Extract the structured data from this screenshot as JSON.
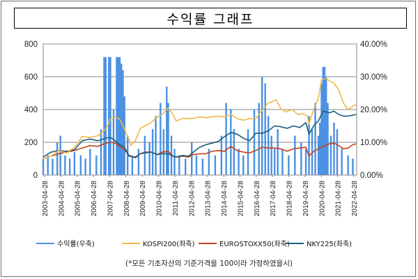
{
  "chart_data": {
    "type": "line",
    "title": "수익률 그래프",
    "footnote": "(*모든 기초자산의 기준가격을 100이라 가정하였을시)",
    "x_ticks": [
      "2003-04-28",
      "2004-04-28",
      "2005-04-28",
      "2006-04-28",
      "2007-04-28",
      "2008-04-28",
      "2009-04-28",
      "2010-04-28",
      "2011-04-28",
      "2012-04-28",
      "2013-04-28",
      "2014-04-28",
      "2015-04-28",
      "2016-04-28",
      "2017-04-28",
      "2018-04-28",
      "2019-04-28",
      "2020-04-28",
      "2021-04-28",
      "2022-04-28"
    ],
    "y_left": {
      "min": 0,
      "max": 800,
      "ticks": [
        "0",
        "200",
        "400",
        "600",
        "800"
      ]
    },
    "y_right": {
      "min": 0,
      "max": 40,
      "ticks": [
        "0.00%",
        "10.00%",
        "20.00%",
        "30.00%",
        "40.00%"
      ]
    },
    "grid": true,
    "legend_position": "bottom",
    "series": [
      {
        "name": "수익률(우축)",
        "axis": "right",
        "style": "spikes",
        "color": "#4a90e2",
        "x": [
          2003.3,
          2003.6,
          2003.9,
          2004.2,
          2004.4,
          2004.7,
          2005.0,
          2005.3,
          2005.7,
          2006.0,
          2006.3,
          2006.7,
          2007.0,
          2007.2,
          2007.3,
          2007.5,
          2007.6,
          2007.8,
          2008.0,
          2008.1,
          2008.2,
          2008.3,
          2008.4,
          2008.5,
          2008.7,
          2009.0,
          2009.4,
          2009.8,
          2010.1,
          2010.3,
          2010.5,
          2010.8,
          2011.0,
          2011.2,
          2011.3,
          2011.5,
          2011.7,
          2012.0,
          2012.4,
          2012.8,
          2013.1,
          2013.5,
          2013.9,
          2014.3,
          2014.7,
          2015.0,
          2015.3,
          2015.5,
          2015.8,
          2016.1,
          2016.4,
          2016.8,
          2017.1,
          2017.3,
          2017.5,
          2017.7,
          2017.9,
          2018.1,
          2018.3,
          2018.6,
          2019.0,
          2019.4,
          2019.8,
          2020.1,
          2020.3,
          2020.5,
          2020.7,
          2020.9,
          2021.0,
          2021.1,
          2021.2,
          2021.3,
          2021.4,
          2021.5,
          2021.7,
          2021.9,
          2022.1,
          2022.4,
          2022.8,
          2023.1
        ],
        "values": [
          5,
          6,
          5,
          10,
          12,
          6,
          5,
          7,
          6,
          5,
          8,
          6,
          14,
          36,
          36,
          36,
          36,
          20,
          36,
          36,
          36,
          34,
          32,
          24,
          12,
          6,
          8,
          12,
          10,
          14,
          18,
          22,
          14,
          27,
          22,
          12,
          8,
          6,
          5,
          10,
          6,
          5,
          8,
          6,
          12,
          22,
          20,
          14,
          8,
          6,
          14,
          20,
          22,
          30,
          28,
          18,
          12,
          8,
          14,
          8,
          6,
          12,
          10,
          8,
          18,
          14,
          22,
          12,
          16,
          28,
          33,
          33,
          30,
          22,
          12,
          16,
          14,
          8,
          6,
          5
        ]
      },
      {
        "name": "KOSPI200(좌축)",
        "axis": "left",
        "style": "line",
        "color": "#f0b94a",
        "x": [
          2003.3,
          2003.8,
          2004.3,
          2004.8,
          2005.3,
          2005.8,
          2006.3,
          2006.8,
          2007.3,
          2007.6,
          2007.9,
          2008.2,
          2008.5,
          2008.8,
          2008.9,
          2009.2,
          2009.5,
          2009.8,
          2010.2,
          2010.6,
          2010.9,
          2011.3,
          2011.6,
          2011.8,
          2012.2,
          2012.6,
          2012.9,
          2013.3,
          2013.7,
          2014.1,
          2014.5,
          2014.9,
          2015.3,
          2015.7,
          2016.1,
          2016.5,
          2016.9,
          2017.3,
          2017.7,
          2017.9,
          2018.2,
          2018.5,
          2018.8,
          2019.2,
          2019.6,
          2019.9,
          2020.2,
          2020.3,
          2020.6,
          2020.9,
          2021.1,
          2021.4,
          2021.6,
          2021.9,
          2022.2,
          2022.5,
          2022.8,
          2023.1,
          2023.3
        ],
        "values": [
          100,
          115,
          150,
          135,
          170,
          235,
          230,
          240,
          280,
          340,
          355,
          340,
          280,
          215,
          180,
          210,
          285,
          300,
          320,
          355,
          370,
          410,
          370,
          330,
          345,
          345,
          345,
          355,
          350,
          355,
          360,
          355,
          370,
          345,
          335,
          345,
          345,
          395,
          440,
          445,
          460,
          405,
          385,
          400,
          370,
          375,
          360,
          310,
          400,
          470,
          580,
          590,
          575,
          560,
          520,
          440,
          400,
          420,
          430
        ]
      },
      {
        "name": "EUROSTOXX50(좌축)",
        "axis": "left",
        "style": "line",
        "color": "#c0431a",
        "x": [
          2003.3,
          2003.8,
          2004.3,
          2004.8,
          2005.3,
          2005.8,
          2006.3,
          2006.8,
          2007.3,
          2007.6,
          2007.9,
          2008.2,
          2008.5,
          2008.8,
          2009.2,
          2009.5,
          2009.8,
          2010.2,
          2010.6,
          2010.9,
          2011.3,
          2011.6,
          2011.8,
          2012.2,
          2012.6,
          2012.9,
          2013.3,
          2013.7,
          2014.1,
          2014.5,
          2014.9,
          2015.3,
          2015.7,
          2016.1,
          2016.5,
          2016.9,
          2017.3,
          2017.7,
          2018.1,
          2018.5,
          2018.9,
          2019.3,
          2019.7,
          2020.1,
          2020.3,
          2020.6,
          2020.9,
          2021.2,
          2021.6,
          2021.9,
          2022.2,
          2022.5,
          2022.8,
          2023.1,
          2023.3
        ],
        "values": [
          100,
          115,
          130,
          140,
          150,
          165,
          180,
          175,
          195,
          200,
          195,
          175,
          155,
          120,
          105,
          130,
          140,
          140,
          125,
          140,
          145,
          115,
          110,
          115,
          110,
          125,
          130,
          130,
          145,
          150,
          145,
          175,
          150,
          140,
          135,
          150,
          170,
          165,
          165,
          160,
          145,
          160,
          165,
          170,
          115,
          145,
          160,
          175,
          190,
          195,
          180,
          160,
          165,
          185,
          190
        ]
      },
      {
        "name": "NKY225(좌축)",
        "axis": "left",
        "style": "line",
        "color": "#1a5f7a",
        "x": [
          2003.3,
          2003.8,
          2004.3,
          2004.8,
          2005.3,
          2005.8,
          2006.3,
          2006.8,
          2007.3,
          2007.6,
          2007.9,
          2008.2,
          2008.5,
          2008.8,
          2009.2,
          2009.5,
          2009.8,
          2010.2,
          2010.6,
          2010.9,
          2011.3,
          2011.6,
          2011.8,
          2012.2,
          2012.6,
          2012.9,
          2013.3,
          2013.7,
          2014.1,
          2014.5,
          2014.9,
          2015.3,
          2015.7,
          2016.1,
          2016.5,
          2016.9,
          2017.3,
          2017.7,
          2018.1,
          2018.5,
          2018.9,
          2019.3,
          2019.7,
          2020.1,
          2020.3,
          2020.6,
          2020.9,
          2021.2,
          2021.6,
          2021.9,
          2022.2,
          2022.5,
          2022.8,
          2023.1,
          2023.3
        ],
        "values": [
          110,
          140,
          150,
          145,
          155,
          210,
          220,
          210,
          225,
          230,
          210,
          185,
          170,
          115,
          110,
          130,
          135,
          140,
          125,
          130,
          130,
          115,
          110,
          120,
          115,
          140,
          170,
          185,
          195,
          205,
          235,
          260,
          250,
          225,
          210,
          255,
          255,
          270,
          300,
          295,
          285,
          300,
          290,
          320,
          250,
          300,
          330,
          390,
          380,
          390,
          370,
          360,
          360,
          365,
          370
        ]
      }
    ]
  }
}
